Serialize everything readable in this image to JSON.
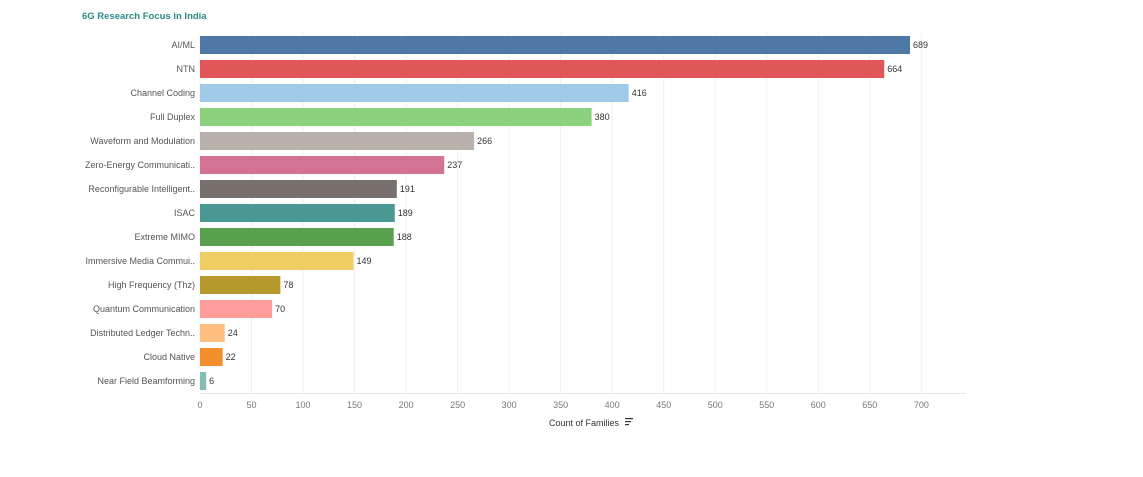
{
  "title": "6G Research Focus in India",
  "chart_data": {
    "type": "bar",
    "orientation": "horizontal",
    "title": "6G Research Focus in India",
    "xlabel": "Count of Families",
    "ylabel": "",
    "xlim": [
      0,
      740
    ],
    "xticks": [
      0,
      50,
      100,
      150,
      200,
      250,
      300,
      350,
      400,
      450,
      500,
      550,
      600,
      650,
      700
    ],
    "grid": true,
    "categories": [
      "AI/ML",
      "NTN",
      "Channel Coding",
      "Full Duplex",
      "Waveform and Modulation",
      "Zero-Energy Communicati..",
      "Reconfigurable Intelligent..",
      "ISAC",
      "Extreme MIMO",
      "Immersive Media Commui..",
      "High Frequency (Thz)",
      "Quantum Communication",
      "Distributed Ledger Techn..",
      "Cloud Native",
      "Near Field Beamforming"
    ],
    "values": [
      689,
      664,
      416,
      380,
      266,
      237,
      191,
      189,
      188,
      149,
      78,
      70,
      24,
      22,
      6
    ],
    "colors": [
      "#4e79a7",
      "#e15759",
      "#a0cbe8",
      "#8cd17d",
      "#bab0ac",
      "#d37295",
      "#79706e",
      "#499894",
      "#59a14f",
      "#f1ce63",
      "#b6992d",
      "#ff9d9a",
      "#ffbe7d",
      "#f28e2b",
      "#86bcb6"
    ]
  }
}
